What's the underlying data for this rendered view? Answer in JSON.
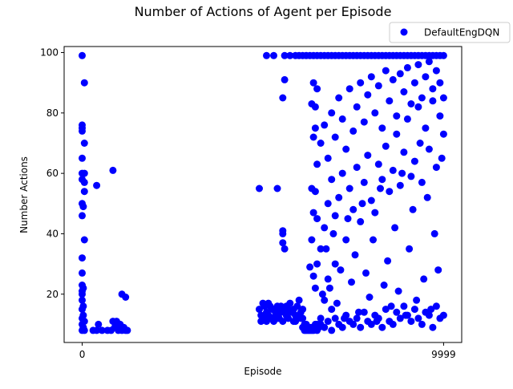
{
  "chart_data": {
    "type": "scatter",
    "title": "Number of Actions of Agent per Episode",
    "xlabel": "Episode",
    "ylabel": "Number Actions",
    "xlim": [
      -500,
      10500
    ],
    "ylim": [
      4,
      102
    ],
    "x_ticks": [
      0,
      9999
    ],
    "x_tick_labels": [
      "0",
      "9999"
    ],
    "y_ticks": [
      20,
      40,
      60,
      80,
      100
    ],
    "y_tick_labels": [
      "20",
      "40",
      "60",
      "80",
      "100"
    ],
    "grid": false,
    "legend": {
      "placement": "top-right-outside",
      "entries": [
        "DefaultEngDQN"
      ]
    },
    "series": [
      {
        "name": "DefaultEngDQN",
        "color": "#0000ff",
        "marker": "circle",
        "points": [
          [
            0,
            99
          ],
          [
            60,
            90
          ],
          [
            0,
            76
          ],
          [
            0,
            75
          ],
          [
            0,
            74
          ],
          [
            60,
            70
          ],
          [
            0,
            65
          ],
          [
            0,
            60
          ],
          [
            60,
            60
          ],
          [
            0,
            58
          ],
          [
            60,
            57
          ],
          [
            60,
            54
          ],
          [
            0,
            50
          ],
          [
            30,
            49
          ],
          [
            0,
            46
          ],
          [
            60,
            38
          ],
          [
            0,
            32
          ],
          [
            0,
            27
          ],
          [
            0,
            23
          ],
          [
            30,
            22
          ],
          [
            0,
            21
          ],
          [
            0,
            20
          ],
          [
            0,
            18
          ],
          [
            30,
            16
          ],
          [
            0,
            15
          ],
          [
            30,
            13
          ],
          [
            0,
            12
          ],
          [
            60,
            11
          ],
          [
            0,
            10
          ],
          [
            30,
            9
          ],
          [
            0,
            8
          ],
          [
            60,
            8
          ],
          [
            400,
            8
          ],
          [
            450,
            10
          ],
          [
            300,
            8
          ],
          [
            550,
            8
          ],
          [
            800,
            8
          ],
          [
            700,
            8
          ],
          [
            1000,
            8
          ],
          [
            900,
            9
          ],
          [
            1100,
            8
          ],
          [
            850,
            11
          ],
          [
            950,
            11
          ],
          [
            1050,
            10
          ],
          [
            1150,
            9
          ],
          [
            1200,
            8
          ],
          [
            1250,
            8
          ],
          [
            1100,
            20
          ],
          [
            1200,
            19
          ],
          [
            850,
            61
          ],
          [
            400,
            56
          ],
          [
            4900,
            55
          ],
          [
            5400,
            55
          ],
          [
            5600,
            91
          ],
          [
            5550,
            85
          ],
          [
            5550,
            41
          ],
          [
            5550,
            40
          ],
          [
            5550,
            37
          ],
          [
            5600,
            35
          ],
          [
            4900,
            15
          ],
          [
            4950,
            13
          ],
          [
            5000,
            12
          ],
          [
            5050,
            16
          ],
          [
            5100,
            14
          ],
          [
            5150,
            17
          ],
          [
            5200,
            12
          ],
          [
            5250,
            15
          ],
          [
            5300,
            11
          ],
          [
            5350,
            13
          ],
          [
            5400,
            16
          ],
          [
            5450,
            12
          ],
          [
            5500,
            14
          ],
          [
            5550,
            11
          ],
          [
            5600,
            15
          ],
          [
            5650,
            13
          ],
          [
            5700,
            12
          ],
          [
            5750,
            17
          ],
          [
            5800,
            14
          ],
          [
            5850,
            11
          ],
          [
            5900,
            13
          ],
          [
            5950,
            16
          ],
          [
            6000,
            18
          ],
          [
            6050,
            12
          ],
          [
            6100,
            15
          ],
          [
            5000,
            17
          ],
          [
            5100,
            11
          ],
          [
            5200,
            16
          ],
          [
            5300,
            15
          ],
          [
            5400,
            12
          ],
          [
            5500,
            16
          ],
          [
            5700,
            15
          ],
          [
            5900,
            11
          ],
          [
            6100,
            12
          ],
          [
            4950,
            11
          ],
          [
            5050,
            12
          ],
          [
            5150,
            13
          ],
          [
            5250,
            12
          ],
          [
            5350,
            14
          ],
          [
            5450,
            15
          ],
          [
            5650,
            16
          ],
          [
            5850,
            15
          ],
          [
            6050,
            14
          ],
          [
            6100,
            9
          ],
          [
            6150,
            8
          ],
          [
            6200,
            10
          ],
          [
            6250,
            8
          ],
          [
            6300,
            9
          ],
          [
            6350,
            8
          ],
          [
            6400,
            8
          ],
          [
            6450,
            10
          ],
          [
            6500,
            8
          ],
          [
            6550,
            9
          ],
          [
            6200,
            8
          ],
          [
            6300,
            8
          ],
          [
            6400,
            9
          ],
          [
            6500,
            10
          ],
          [
            6150,
            10
          ],
          [
            6350,
            9
          ],
          [
            6300,
            29
          ],
          [
            6400,
            26
          ],
          [
            6450,
            22
          ],
          [
            6500,
            30
          ],
          [
            6350,
            38
          ],
          [
            6500,
            45
          ],
          [
            6400,
            47
          ],
          [
            6450,
            54
          ],
          [
            6350,
            55
          ],
          [
            6500,
            63
          ],
          [
            6400,
            72
          ],
          [
            6450,
            75
          ],
          [
            6350,
            83
          ],
          [
            6450,
            82
          ],
          [
            6500,
            88
          ],
          [
            6400,
            90
          ],
          [
            6600,
            12
          ],
          [
            6700,
            18
          ],
          [
            6800,
            25
          ],
          [
            6900,
            15
          ],
          [
            7000,
            30
          ],
          [
            6650,
            20
          ],
          [
            6750,
            35
          ],
          [
            6850,
            22
          ],
          [
            6950,
            40
          ],
          [
            7050,
            17
          ],
          [
            7150,
            28
          ],
          [
            7250,
            12
          ],
          [
            7350,
            45
          ],
          [
            7450,
            24
          ],
          [
            7550,
            33
          ],
          [
            7650,
            14
          ],
          [
            7750,
            50
          ],
          [
            7850,
            27
          ],
          [
            7950,
            19
          ],
          [
            8050,
            38
          ],
          [
            8150,
            11
          ],
          [
            8250,
            55
          ],
          [
            8350,
            23
          ],
          [
            8450,
            31
          ],
          [
            8550,
            16
          ],
          [
            8650,
            42
          ],
          [
            8750,
            21
          ],
          [
            8850,
            60
          ],
          [
            8950,
            13
          ],
          [
            9050,
            35
          ],
          [
            9150,
            48
          ],
          [
            9250,
            18
          ],
          [
            9350,
            70
          ],
          [
            9450,
            25
          ],
          [
            9550,
            52
          ],
          [
            9650,
            15
          ],
          [
            9750,
            40
          ],
          [
            9850,
            28
          ],
          [
            9950,
            65
          ],
          [
            6600,
            35
          ],
          [
            6700,
            42
          ],
          [
            6800,
            50
          ],
          [
            6900,
            58
          ],
          [
            7000,
            46
          ],
          [
            7100,
            52
          ],
          [
            7200,
            60
          ],
          [
            7300,
            38
          ],
          [
            7400,
            55
          ],
          [
            7500,
            48
          ],
          [
            7600,
            62
          ],
          [
            7700,
            44
          ],
          [
            7800,
            57
          ],
          [
            7900,
            66
          ],
          [
            8000,
            51
          ],
          [
            8100,
            47
          ],
          [
            8200,
            63
          ],
          [
            8300,
            58
          ],
          [
            8400,
            69
          ],
          [
            8500,
            54
          ],
          [
            8600,
            61
          ],
          [
            8700,
            73
          ],
          [
            8800,
            56
          ],
          [
            8900,
            67
          ],
          [
            9000,
            78
          ],
          [
            9100,
            59
          ],
          [
            9200,
            64
          ],
          [
            9300,
            82
          ],
          [
            9400,
            57
          ],
          [
            9500,
            75
          ],
          [
            9600,
            68
          ],
          [
            9700,
            84
          ],
          [
            9800,
            62
          ],
          [
            9900,
            79
          ],
          [
            9999,
            73
          ],
          [
            6600,
            70
          ],
          [
            6700,
            76
          ],
          [
            6800,
            65
          ],
          [
            6900,
            80
          ],
          [
            7000,
            72
          ],
          [
            7100,
            85
          ],
          [
            7200,
            78
          ],
          [
            7300,
            68
          ],
          [
            7400,
            88
          ],
          [
            7500,
            74
          ],
          [
            7600,
            82
          ],
          [
            7700,
            90
          ],
          [
            7800,
            77
          ],
          [
            7900,
            86
          ],
          [
            8000,
            92
          ],
          [
            8100,
            80
          ],
          [
            8200,
            89
          ],
          [
            8300,
            75
          ],
          [
            8400,
            94
          ],
          [
            8500,
            84
          ],
          [
            8600,
            91
          ],
          [
            8700,
            79
          ],
          [
            8800,
            93
          ],
          [
            8900,
            87
          ],
          [
            9000,
            95
          ],
          [
            9100,
            83
          ],
          [
            9200,
            90
          ],
          [
            9300,
            96
          ],
          [
            9400,
            85
          ],
          [
            9500,
            92
          ],
          [
            9600,
            97
          ],
          [
            9700,
            88
          ],
          [
            9800,
            94
          ],
          [
            9900,
            90
          ],
          [
            9999,
            85
          ],
          [
            6000,
            99
          ],
          [
            6100,
            99
          ],
          [
            6200,
            99
          ],
          [
            6300,
            99
          ],
          [
            6400,
            99
          ],
          [
            6500,
            99
          ],
          [
            6600,
            99
          ],
          [
            6700,
            99
          ],
          [
            6800,
            99
          ],
          [
            6900,
            99
          ],
          [
            7000,
            99
          ],
          [
            7100,
            99
          ],
          [
            7200,
            99
          ],
          [
            7300,
            99
          ],
          [
            7400,
            99
          ],
          [
            7500,
            99
          ],
          [
            7600,
            99
          ],
          [
            7700,
            99
          ],
          [
            7800,
            99
          ],
          [
            7900,
            99
          ],
          [
            8000,
            99
          ],
          [
            8100,
            99
          ],
          [
            8200,
            99
          ],
          [
            8300,
            99
          ],
          [
            8400,
            99
          ],
          [
            8500,
            99
          ],
          [
            8600,
            99
          ],
          [
            8700,
            99
          ],
          [
            8800,
            99
          ],
          [
            8900,
            99
          ],
          [
            9000,
            99
          ],
          [
            9100,
            99
          ],
          [
            9200,
            99
          ],
          [
            9300,
            99
          ],
          [
            9400,
            99
          ],
          [
            9500,
            99
          ],
          [
            9600,
            99
          ],
          [
            9700,
            99
          ],
          [
            9800,
            99
          ],
          [
            9900,
            99
          ],
          [
            9999,
            99
          ],
          [
            5100,
            99
          ],
          [
            5300,
            99
          ],
          [
            5600,
            99
          ],
          [
            5750,
            99
          ],
          [
            5900,
            99
          ],
          [
            6600,
            10
          ],
          [
            6700,
            9
          ],
          [
            6800,
            11
          ],
          [
            6900,
            8
          ],
          [
            7000,
            12
          ],
          [
            7100,
            10
          ],
          [
            7200,
            9
          ],
          [
            7300,
            13
          ],
          [
            7400,
            11
          ],
          [
            7500,
            10
          ],
          [
            7600,
            12
          ],
          [
            7700,
            9
          ],
          [
            7800,
            14
          ],
          [
            7900,
            11
          ],
          [
            8000,
            10
          ],
          [
            8100,
            13
          ],
          [
            8200,
            12
          ],
          [
            8300,
            9
          ],
          [
            8400,
            15
          ],
          [
            8500,
            11
          ],
          [
            8600,
            10
          ],
          [
            8700,
            14
          ],
          [
            8800,
            12
          ],
          [
            8900,
            16
          ],
          [
            9000,
            13
          ],
          [
            9100,
            11
          ],
          [
            9200,
            15
          ],
          [
            9300,
            12
          ],
          [
            9400,
            10
          ],
          [
            9500,
            14
          ],
          [
            9600,
            13
          ],
          [
            9700,
            9
          ],
          [
            9800,
            16
          ],
          [
            9900,
            12
          ],
          [
            9999,
            13
          ]
        ]
      }
    ]
  }
}
